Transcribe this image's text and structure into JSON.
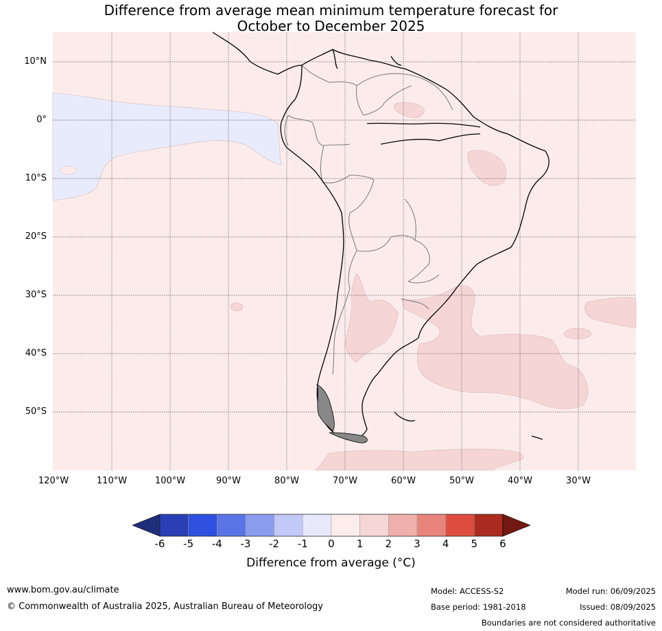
{
  "title_line1": "Difference from average mean minimum temperature forecast for",
  "title_line2": "October to December 2025",
  "lat_labels": [
    "10°N",
    "0°",
    "10°S",
    "20°S",
    "30°S",
    "40°S",
    "50°S"
  ],
  "lon_labels": [
    "120°W",
    "110°W",
    "100°W",
    "90°W",
    "80°W",
    "70°W",
    "60°W",
    "50°W",
    "40°W",
    "30°W"
  ],
  "colorbar": {
    "ticks": [
      "-6",
      "-5",
      "-4",
      "-3",
      "-2",
      "-1",
      "0",
      "1",
      "2",
      "3",
      "4",
      "5",
      "6"
    ],
    "colors": [
      "#2a3fb5",
      "#3050e0",
      "#5a73e6",
      "#8a9cee",
      "#c2c9f6",
      "#e8eafc",
      "#fcecec",
      "#f6d7d7",
      "#efb0ab",
      "#e9847c",
      "#dd4c3e",
      "#ac2b20"
    ],
    "under_color": "#1e2e7a",
    "over_color": "#731812",
    "label": "Difference from average (°C)"
  },
  "map_colors": {
    "background": "#fbeceb",
    "negative_anomaly": "#e8ebfb",
    "positive_anomaly": "#f5d6d5"
  },
  "footer": {
    "website": "www.bom.gov.au/climate",
    "copyright": "© Commonwealth of Australia 2025, Australian Bureau of Meteorology",
    "model": "Model: ACCESS-S2",
    "base_period": "Base period: 1981-2018",
    "model_run": "Model run: 06/09/2025",
    "issued": "Issued: 08/09/2025",
    "disclaimer": "Boundaries are not considered authoritative"
  }
}
